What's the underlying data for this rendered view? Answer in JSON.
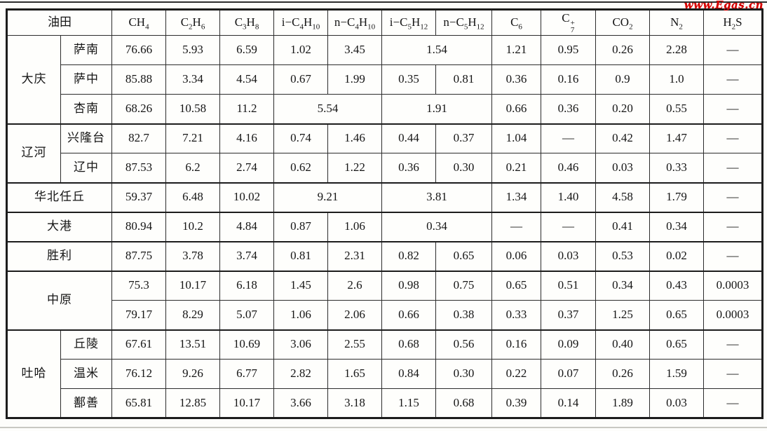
{
  "watermark": "www.Egas.cn",
  "table": {
    "field_label": "油田",
    "columns": [
      {
        "key": "ch4",
        "segs": [
          [
            "n",
            "CH"
          ],
          [
            "b",
            "4"
          ]
        ]
      },
      {
        "key": "c2h6",
        "segs": [
          [
            "n",
            "C"
          ],
          [
            "b",
            "2"
          ],
          [
            "n",
            "H"
          ],
          [
            "b",
            "6"
          ]
        ]
      },
      {
        "key": "c3h8",
        "segs": [
          [
            "n",
            "C"
          ],
          [
            "b",
            "3"
          ],
          [
            "n",
            "H"
          ],
          [
            "b",
            "8"
          ]
        ]
      },
      {
        "key": "ic4h10",
        "segs": [
          [
            "n",
            "i−C"
          ],
          [
            "b",
            "4"
          ],
          [
            "n",
            "H"
          ],
          [
            "b",
            "10"
          ]
        ]
      },
      {
        "key": "nc4h10",
        "segs": [
          [
            "n",
            "n−C"
          ],
          [
            "b",
            "4"
          ],
          [
            "n",
            "H"
          ],
          [
            "b",
            "10"
          ]
        ]
      },
      {
        "key": "ic5h12",
        "segs": [
          [
            "n",
            "i−C"
          ],
          [
            "b",
            "5"
          ],
          [
            "n",
            "H"
          ],
          [
            "b",
            "12"
          ]
        ]
      },
      {
        "key": "nc5h12",
        "segs": [
          [
            "n",
            "n−C"
          ],
          [
            "b",
            "5"
          ],
          [
            "n",
            "H"
          ],
          [
            "b",
            "12"
          ]
        ]
      },
      {
        "key": "c6",
        "segs": [
          [
            "n",
            "C"
          ],
          [
            "b",
            "6"
          ]
        ]
      },
      {
        "key": "c7plus",
        "segs": [
          [
            "n",
            "C"
          ],
          [
            "k",
            "+",
            "7"
          ]
        ]
      },
      {
        "key": "co2",
        "segs": [
          [
            "n",
            "CO"
          ],
          [
            "b",
            "2"
          ]
        ]
      },
      {
        "key": "n2",
        "segs": [
          [
            "n",
            "N"
          ],
          [
            "b",
            "2"
          ]
        ]
      },
      {
        "key": "h2s",
        "segs": [
          [
            "n",
            "H"
          ],
          [
            "b",
            "2"
          ],
          [
            "n",
            "S"
          ]
        ]
      }
    ],
    "rows": [
      {
        "group": "大庆",
        "rs": 3,
        "sub": "萨南",
        "sep": false,
        "cells": [
          {
            "v": "76.66"
          },
          {
            "v": "5.93"
          },
          {
            "v": "6.59"
          },
          {
            "v": "1.02"
          },
          {
            "v": "3.45"
          },
          {
            "v": "1.54",
            "span": 2
          },
          {
            "v": "1.21"
          },
          {
            "v": "0.95"
          },
          {
            "v": "0.26"
          },
          {
            "v": "2.28"
          },
          {
            "v": "—"
          }
        ]
      },
      {
        "sub": "萨中",
        "sep": false,
        "cells": [
          {
            "v": "85.88"
          },
          {
            "v": "3.34"
          },
          {
            "v": "4.54"
          },
          {
            "v": "0.67"
          },
          {
            "v": "1.99"
          },
          {
            "v": "0.35"
          },
          {
            "v": "0.81"
          },
          {
            "v": "0.36"
          },
          {
            "v": "0.16"
          },
          {
            "v": "0.9"
          },
          {
            "v": "1.0"
          },
          {
            "v": "—"
          }
        ]
      },
      {
        "sub": "杏南",
        "sep": false,
        "cells": [
          {
            "v": "68.26"
          },
          {
            "v": "10.58"
          },
          {
            "v": "11.2"
          },
          {
            "v": "5.54",
            "span": 2
          },
          {
            "v": "1.91",
            "span": 2
          },
          {
            "v": "0.66"
          },
          {
            "v": "0.36"
          },
          {
            "v": "0.20"
          },
          {
            "v": "0.55"
          },
          {
            "v": "—"
          }
        ]
      },
      {
        "group": "辽河",
        "rs": 2,
        "sub": "兴隆台",
        "sep": true,
        "cells": [
          {
            "v": "82.7"
          },
          {
            "v": "7.21"
          },
          {
            "v": "4.16"
          },
          {
            "v": "0.74"
          },
          {
            "v": "1.46"
          },
          {
            "v": "0.44"
          },
          {
            "v": "0.37"
          },
          {
            "v": "1.04"
          },
          {
            "v": "—"
          },
          {
            "v": "0.42"
          },
          {
            "v": "1.47"
          },
          {
            "v": "—"
          }
        ]
      },
      {
        "sub": "辽中",
        "sep": false,
        "cells": [
          {
            "v": "87.53"
          },
          {
            "v": "6.2"
          },
          {
            "v": "2.74"
          },
          {
            "v": "0.62"
          },
          {
            "v": "1.22"
          },
          {
            "v": "0.36"
          },
          {
            "v": "0.30"
          },
          {
            "v": "0.21"
          },
          {
            "v": "0.46"
          },
          {
            "v": "0.03"
          },
          {
            "v": "0.33"
          },
          {
            "v": "—"
          }
        ]
      },
      {
        "label": "华北任丘",
        "sep": true,
        "cells": [
          {
            "v": "59.37"
          },
          {
            "v": "6.48"
          },
          {
            "v": "10.02"
          },
          {
            "v": "9.21",
            "span": 2
          },
          {
            "v": "3.81",
            "span": 2
          },
          {
            "v": "1.34"
          },
          {
            "v": "1.40"
          },
          {
            "v": "4.58"
          },
          {
            "v": "1.79"
          },
          {
            "v": "—"
          }
        ]
      },
      {
        "label": "大港",
        "sep": true,
        "cells": [
          {
            "v": "80.94"
          },
          {
            "v": "10.2"
          },
          {
            "v": "4.84"
          },
          {
            "v": "0.87"
          },
          {
            "v": "1.06"
          },
          {
            "v": "0.34",
            "span": 2
          },
          {
            "v": "—"
          },
          {
            "v": "—"
          },
          {
            "v": "0.41"
          },
          {
            "v": "0.34"
          },
          {
            "v": "—"
          }
        ]
      },
      {
        "label": "胜利",
        "sep": true,
        "cells": [
          {
            "v": "87.75"
          },
          {
            "v": "3.78"
          },
          {
            "v": "3.74"
          },
          {
            "v": "0.81"
          },
          {
            "v": "2.31"
          },
          {
            "v": "0.82"
          },
          {
            "v": "0.65"
          },
          {
            "v": "0.06"
          },
          {
            "v": "0.03"
          },
          {
            "v": "0.53"
          },
          {
            "v": "0.02"
          },
          {
            "v": "—"
          }
        ]
      },
      {
        "label": "中原",
        "rs": 2,
        "sep": true,
        "cells": [
          {
            "v": "75.3"
          },
          {
            "v": "10.17"
          },
          {
            "v": "6.18"
          },
          {
            "v": "1.45"
          },
          {
            "v": "2.6"
          },
          {
            "v": "0.98"
          },
          {
            "v": "0.75"
          },
          {
            "v": "0.65"
          },
          {
            "v": "0.51"
          },
          {
            "v": "0.34"
          },
          {
            "v": "0.43"
          },
          {
            "v": "0.0003"
          }
        ]
      },
      {
        "sep": false,
        "cells": [
          {
            "v": "79.17"
          },
          {
            "v": "8.29"
          },
          {
            "v": "5.07"
          },
          {
            "v": "1.06"
          },
          {
            "v": "2.06"
          },
          {
            "v": "0.66"
          },
          {
            "v": "0.38"
          },
          {
            "v": "0.33"
          },
          {
            "v": "0.37"
          },
          {
            "v": "1.25"
          },
          {
            "v": "0.65"
          },
          {
            "v": "0.0003"
          }
        ]
      },
      {
        "group": "吐哈",
        "rs": 3,
        "sub": "丘陵",
        "sep": true,
        "cells": [
          {
            "v": "67.61"
          },
          {
            "v": "13.51"
          },
          {
            "v": "10.69"
          },
          {
            "v": "3.06"
          },
          {
            "v": "2.55"
          },
          {
            "v": "0.68"
          },
          {
            "v": "0.56"
          },
          {
            "v": "0.16"
          },
          {
            "v": "0.09"
          },
          {
            "v": "0.40"
          },
          {
            "v": "0.65"
          },
          {
            "v": "—"
          }
        ]
      },
      {
        "sub": "温米",
        "sep": false,
        "cells": [
          {
            "v": "76.12"
          },
          {
            "v": "9.26"
          },
          {
            "v": "6.77"
          },
          {
            "v": "2.82"
          },
          {
            "v": "1.65"
          },
          {
            "v": "0.84"
          },
          {
            "v": "0.30"
          },
          {
            "v": "0.22"
          },
          {
            "v": "0.07"
          },
          {
            "v": "0.26"
          },
          {
            "v": "1.59"
          },
          {
            "v": "—"
          }
        ]
      },
      {
        "sub": "鄯善",
        "sep": false,
        "cells": [
          {
            "v": "65.81"
          },
          {
            "v": "12.85"
          },
          {
            "v": "10.17"
          },
          {
            "v": "3.66"
          },
          {
            "v": "3.18"
          },
          {
            "v": "1.15"
          },
          {
            "v": "0.68"
          },
          {
            "v": "0.39"
          },
          {
            "v": "0.14"
          },
          {
            "v": "1.89"
          },
          {
            "v": "0.03"
          },
          {
            "v": "—"
          }
        ]
      }
    ]
  }
}
